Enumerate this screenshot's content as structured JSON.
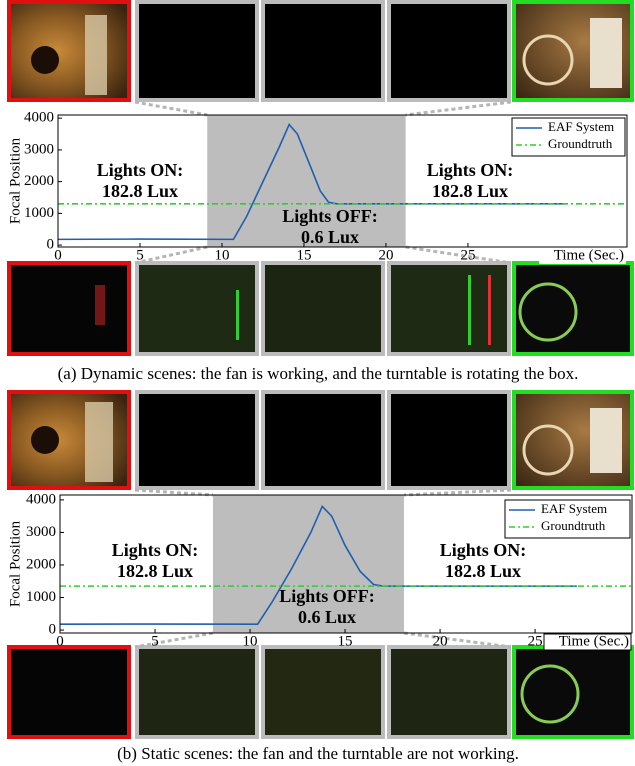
{
  "chart_data": [
    {
      "type": "line",
      "xlabel": "Time (Sec.)",
      "ylabel": "Focal Position",
      "xlim": [
        0,
        34.7
      ],
      "ylim": [
        -60,
        4100
      ],
      "xticks": [
        0,
        5,
        10,
        15,
        20,
        25
      ],
      "yticks": [
        0,
        1000,
        2000,
        3000,
        4000
      ],
      "shade": [
        9.1,
        21.2
      ],
      "shade_color": "#bdbdbd",
      "legend": "upper right",
      "annotations": [
        [
          "Lights ON:",
          "182.8 Lux"
        ],
        [
          "Lights ON:",
          "182.8 Lux"
        ],
        [
          "Lights OFF:",
          "0.6 Lux"
        ]
      ],
      "series": [
        {
          "name": "EAF System",
          "color": "#1f5fb0",
          "style": "solid",
          "x": [
            0,
            5,
            10.7,
            11.5,
            12.5,
            13.5,
            14.1,
            14.6,
            15.3,
            16.0,
            16.5,
            17,
            20,
            25,
            30.9
          ],
          "values": [
            180,
            190,
            180,
            900,
            2000,
            3100,
            3800,
            3500,
            2600,
            1700,
            1350,
            1300,
            1300,
            1300,
            1300
          ]
        },
        {
          "name": "Groundtruth",
          "color": "#33cc33",
          "style": "dashdot",
          "x": [
            0,
            34.7
          ],
          "values": [
            1300,
            1300
          ]
        }
      ],
      "caption": "(a) Dynamic scenes: the fan is working, and the turntable is rotating the box."
    },
    {
      "type": "line",
      "xlabel": "Time (Sec.)",
      "ylabel": "Focal Position",
      "xlim": [
        0,
        30.1
      ],
      "ylim": [
        -90,
        4150
      ],
      "xticks": [
        0,
        5,
        10,
        15,
        20,
        25
      ],
      "yticks": [
        0,
        1000,
        2000,
        3000,
        4000
      ],
      "shade": [
        8.05,
        18.1
      ],
      "shade_color": "#bdbdbd",
      "legend": "upper right",
      "annotations": [
        [
          "Lights ON:",
          "182.8 Lux"
        ],
        [
          "Lights ON:",
          "182.8 Lux"
        ],
        [
          "Lights OFF:",
          "0.6 Lux"
        ]
      ],
      "series": [
        {
          "name": "EAF System",
          "color": "#1f5fb0",
          "style": "solid",
          "x": [
            0,
            5,
            10.4,
            11.2,
            12.2,
            13.2,
            13.8,
            14.3,
            15,
            15.8,
            16.5,
            17,
            20,
            25,
            27.2
          ],
          "values": [
            180,
            185,
            180,
            900,
            1900,
            3000,
            3800,
            3500,
            2600,
            1800,
            1400,
            1350,
            1350,
            1350,
            1350
          ]
        },
        {
          "name": "Groundtruth",
          "color": "#33cc33",
          "style": "dashdot",
          "x": [
            0,
            30.1
          ],
          "values": [
            1350,
            1350
          ]
        }
      ],
      "caption": "(b) Static scenes: the fan and the turntable are not working."
    }
  ]
}
